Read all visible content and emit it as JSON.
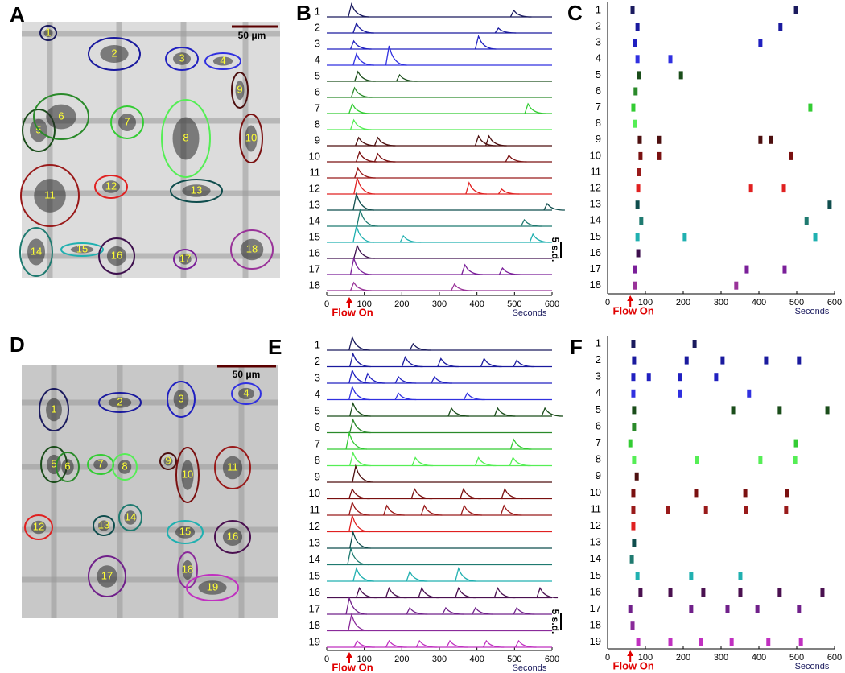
{
  "images": [
    {
      "letter": "A",
      "scale_bar": "50 μm"
    },
    {
      "letter": "D",
      "scale_bar": "50 μm"
    }
  ],
  "chart_data": [
    {
      "type": "traces",
      "letter": "B",
      "xlim": [
        0,
        600
      ],
      "xticks": [
        0,
        100,
        200,
        300,
        400,
        500,
        600
      ],
      "xlabel": "Seconds",
      "annotation": "Flow On",
      "flow_on": 60,
      "scale_bar": {
        "value": 5,
        "label": "5 s.d."
      },
      "series": [
        {
          "name": "1",
          "color": "#1a1a5e",
          "x": [
            66,
            498
          ],
          "values": [
            4,
            2
          ]
        },
        {
          "name": "2",
          "color": "#1a1a9e",
          "x": [
            79,
            457
          ],
          "values": [
            3,
            1.5
          ]
        },
        {
          "name": "3",
          "color": "#2020c0",
          "x": [
            72,
            404
          ],
          "values": [
            2.5,
            4
          ]
        },
        {
          "name": "4",
          "color": "#3030e0",
          "x": [
            79,
            166
          ],
          "values": [
            3.5,
            6
          ]
        },
        {
          "name": "5",
          "color": "#1a4d1a",
          "x": [
            83,
            194
          ],
          "values": [
            3,
            2
          ]
        },
        {
          "name": "6",
          "color": "#2a8a2a",
          "x": [
            74
          ],
          "values": [
            3
          ]
        },
        {
          "name": "7",
          "color": "#33cc33",
          "x": [
            68,
            536
          ],
          "values": [
            3,
            3
          ]
        },
        {
          "name": "8",
          "color": "#55ee55",
          "x": [
            72
          ],
          "values": [
            3
          ]
        },
        {
          "name": "9",
          "color": "#4d0f0f",
          "x": [
            85,
            136,
            404,
            432
          ],
          "values": [
            2.5,
            2.5,
            3,
            3
          ]
        },
        {
          "name": "10",
          "color": "#7a1010",
          "x": [
            87,
            136,
            485
          ],
          "values": [
            3,
            2.5,
            2
          ]
        },
        {
          "name": "11",
          "color": "#991a1a",
          "x": [
            83
          ],
          "values": [
            3
          ]
        },
        {
          "name": "12",
          "color": "#e02020",
          "x": [
            81,
            379,
            466
          ],
          "values": [
            5,
            3.5,
            1.5
          ]
        },
        {
          "name": "13",
          "color": "#0f4d4d",
          "x": [
            79,
            587
          ],
          "values": [
            5,
            2
          ]
        },
        {
          "name": "14",
          "color": "#1f7a70",
          "x": [
            89,
            526
          ],
          "values": [
            5,
            2
          ]
        },
        {
          "name": "15",
          "color": "#20b0b0",
          "x": [
            79,
            204,
            549
          ],
          "values": [
            5,
            2,
            2.5
          ]
        },
        {
          "name": "16",
          "color": "#3d0f4d",
          "x": [
            81
          ],
          "values": [
            4
          ]
        },
        {
          "name": "17",
          "color": "#7a1f99",
          "x": [
            72,
            368,
            468
          ],
          "values": [
            5,
            3,
            2
          ]
        },
        {
          "name": "18",
          "color": "#993399",
          "x": [
            72,
            340
          ],
          "values": [
            2.5,
            2
          ]
        }
      ]
    },
    {
      "type": "raster",
      "letter": "C",
      "xlim": [
        0,
        600
      ],
      "xticks": [
        0,
        100,
        200,
        300,
        400,
        500,
        600
      ],
      "xlabel": "Seconds",
      "annotation": "Flow On",
      "flow_on": 60,
      "series": [
        {
          "name": "1",
          "color": "#1a1a5e",
          "x": [
            66,
            498
          ]
        },
        {
          "name": "2",
          "color": "#1a1a9e",
          "x": [
            79,
            457
          ]
        },
        {
          "name": "3",
          "color": "#2020c0",
          "x": [
            72,
            404
          ]
        },
        {
          "name": "4",
          "color": "#3030e0",
          "x": [
            79,
            166
          ]
        },
        {
          "name": "5",
          "color": "#1a4d1a",
          "x": [
            83,
            194
          ]
        },
        {
          "name": "6",
          "color": "#2a8a2a",
          "x": [
            74
          ]
        },
        {
          "name": "7",
          "color": "#33cc33",
          "x": [
            68,
            536
          ]
        },
        {
          "name": "8",
          "color": "#55ee55",
          "x": [
            72
          ]
        },
        {
          "name": "9",
          "color": "#4d0f0f",
          "x": [
            85,
            136,
            404,
            432
          ]
        },
        {
          "name": "10",
          "color": "#7a1010",
          "x": [
            87,
            136,
            485
          ]
        },
        {
          "name": "11",
          "color": "#991a1a",
          "x": [
            83
          ]
        },
        {
          "name": "12",
          "color": "#e02020",
          "x": [
            81,
            379,
            466
          ]
        },
        {
          "name": "13",
          "color": "#0f4d4d",
          "x": [
            79,
            587
          ]
        },
        {
          "name": "14",
          "color": "#1f7a70",
          "x": [
            89,
            526
          ]
        },
        {
          "name": "15",
          "color": "#20b0b0",
          "x": [
            79,
            204,
            549
          ]
        },
        {
          "name": "16",
          "color": "#3d0f4d",
          "x": [
            81
          ]
        },
        {
          "name": "17",
          "color": "#7a1f99",
          "x": [
            72,
            368,
            468
          ]
        },
        {
          "name": "18",
          "color": "#993399",
          "x": [
            72,
            340
          ]
        }
      ]
    },
    {
      "type": "traces",
      "letter": "E",
      "xlim": [
        0,
        600
      ],
      "xticks": [
        0,
        100,
        200,
        300,
        400,
        500,
        600
      ],
      "xlabel": "Seconds",
      "annotation": "Flow On",
      "flow_on": 60,
      "scale_bar": {
        "value": 5,
        "label": "5 s.d."
      },
      "series": [
        {
          "name": "1",
          "color": "#1a1a5e",
          "x": [
            68,
            230
          ],
          "values": [
            4,
            2
          ]
        },
        {
          "name": "2",
          "color": "#1a1a9e",
          "x": [
            70,
            209,
            304,
            419,
            506
          ],
          "values": [
            4,
            3,
            2.5,
            2.5,
            2
          ]
        },
        {
          "name": "3",
          "color": "#2020c0",
          "x": [
            68,
            109,
            191,
            287
          ],
          "values": [
            4,
            3,
            2,
            2
          ]
        },
        {
          "name": "4",
          "color": "#3030e0",
          "x": [
            68,
            191,
            374
          ],
          "values": [
            4,
            2,
            2
          ]
        },
        {
          "name": "5",
          "color": "#1a4d1a",
          "x": [
            70,
            332,
            455,
            581
          ],
          "values": [
            4,
            2.5,
            2.5,
            2.5
          ]
        },
        {
          "name": "6",
          "color": "#2a8a2a",
          "x": [
            70
          ],
          "values": [
            4
          ]
        },
        {
          "name": "7",
          "color": "#33cc33",
          "x": [
            60,
            498
          ],
          "values": [
            5,
            3
          ]
        },
        {
          "name": "8",
          "color": "#55ee55",
          "x": [
            70,
            236,
            404,
            496
          ],
          "values": [
            4,
            2.5,
            2.5,
            2.5
          ]
        },
        {
          "name": "9",
          "color": "#4d0f0f",
          "x": [
            77
          ],
          "values": [
            5
          ]
        },
        {
          "name": "10",
          "color": "#7a1010",
          "x": [
            68,
            234,
            364,
            474
          ],
          "values": [
            3,
            3,
            3,
            3
          ]
        },
        {
          "name": "11",
          "color": "#991a1a",
          "x": [
            68,
            160,
            260,
            366,
            472
          ],
          "values": [
            4,
            3,
            3,
            3,
            3
          ]
        },
        {
          "name": "12",
          "color": "#e02020",
          "x": [
            68
          ],
          "values": [
            5
          ]
        },
        {
          "name": "13",
          "color": "#0f4d4d",
          "x": [
            70
          ],
          "values": [
            5
          ]
        },
        {
          "name": "14",
          "color": "#1f7a70",
          "x": [
            64
          ],
          "values": [
            5
          ]
        },
        {
          "name": "15",
          "color": "#20b0b0",
          "x": [
            79,
            221,
            351
          ],
          "values": [
            4,
            3,
            4
          ]
        },
        {
          "name": "16",
          "color": "#4a1050",
          "x": [
            87,
            166,
            253,
            351,
            455,
            568
          ],
          "values": [
            3,
            3,
            3,
            3,
            3,
            3
          ]
        },
        {
          "name": "17",
          "color": "#70208a",
          "x": [
            60,
            221,
            317,
            396,
            506
          ],
          "values": [
            5,
            2,
            2,
            2,
            2
          ]
        },
        {
          "name": "18",
          "color": "#8a2a9a",
          "x": [
            66
          ],
          "values": [
            5
          ]
        },
        {
          "name": "19",
          "color": "#c030c0",
          "x": [
            81,
            166,
            247,
            328,
            425,
            511
          ],
          "values": [
            2,
            2,
            2,
            2,
            2,
            2
          ]
        }
      ]
    },
    {
      "type": "raster",
      "letter": "F",
      "xlim": [
        0,
        600
      ],
      "xticks": [
        0,
        100,
        200,
        300,
        400,
        500,
        600
      ],
      "xlabel": "Seconds",
      "annotation": "Flow On",
      "flow_on": 60,
      "series": [
        {
          "name": "1",
          "color": "#1a1a5e",
          "x": [
            68,
            230
          ]
        },
        {
          "name": "2",
          "color": "#1a1a9e",
          "x": [
            70,
            209,
            304,
            419,
            506
          ]
        },
        {
          "name": "3",
          "color": "#2020c0",
          "x": [
            68,
            109,
            191,
            287
          ]
        },
        {
          "name": "4",
          "color": "#3030e0",
          "x": [
            68,
            191,
            374
          ]
        },
        {
          "name": "5",
          "color": "#1a4d1a",
          "x": [
            70,
            332,
            455,
            581
          ]
        },
        {
          "name": "6",
          "color": "#2a8a2a",
          "x": [
            70
          ]
        },
        {
          "name": "7",
          "color": "#33cc33",
          "x": [
            60,
            498
          ]
        },
        {
          "name": "8",
          "color": "#55ee55",
          "x": [
            70,
            236,
            404,
            496
          ]
        },
        {
          "name": "9",
          "color": "#4d0f0f",
          "x": [
            77
          ]
        },
        {
          "name": "10",
          "color": "#7a1010",
          "x": [
            68,
            234,
            364,
            474
          ]
        },
        {
          "name": "11",
          "color": "#991a1a",
          "x": [
            68,
            160,
            260,
            366,
            472
          ]
        },
        {
          "name": "12",
          "color": "#e02020",
          "x": [
            68
          ]
        },
        {
          "name": "13",
          "color": "#0f4d4d",
          "x": [
            70
          ]
        },
        {
          "name": "14",
          "color": "#1f7a70",
          "x": [
            64
          ]
        },
        {
          "name": "15",
          "color": "#20b0b0",
          "x": [
            79,
            221,
            351
          ]
        },
        {
          "name": "16",
          "color": "#4a1050",
          "x": [
            87,
            166,
            253,
            351,
            455,
            568
          ]
        },
        {
          "name": "17",
          "color": "#70208a",
          "x": [
            60,
            221,
            317,
            396,
            506
          ]
        },
        {
          "name": "18",
          "color": "#8a2a9a",
          "x": [
            66
          ]
        },
        {
          "name": "19",
          "color": "#c030c0",
          "x": [
            81,
            166,
            247,
            328,
            425,
            511
          ]
        }
      ]
    }
  ]
}
